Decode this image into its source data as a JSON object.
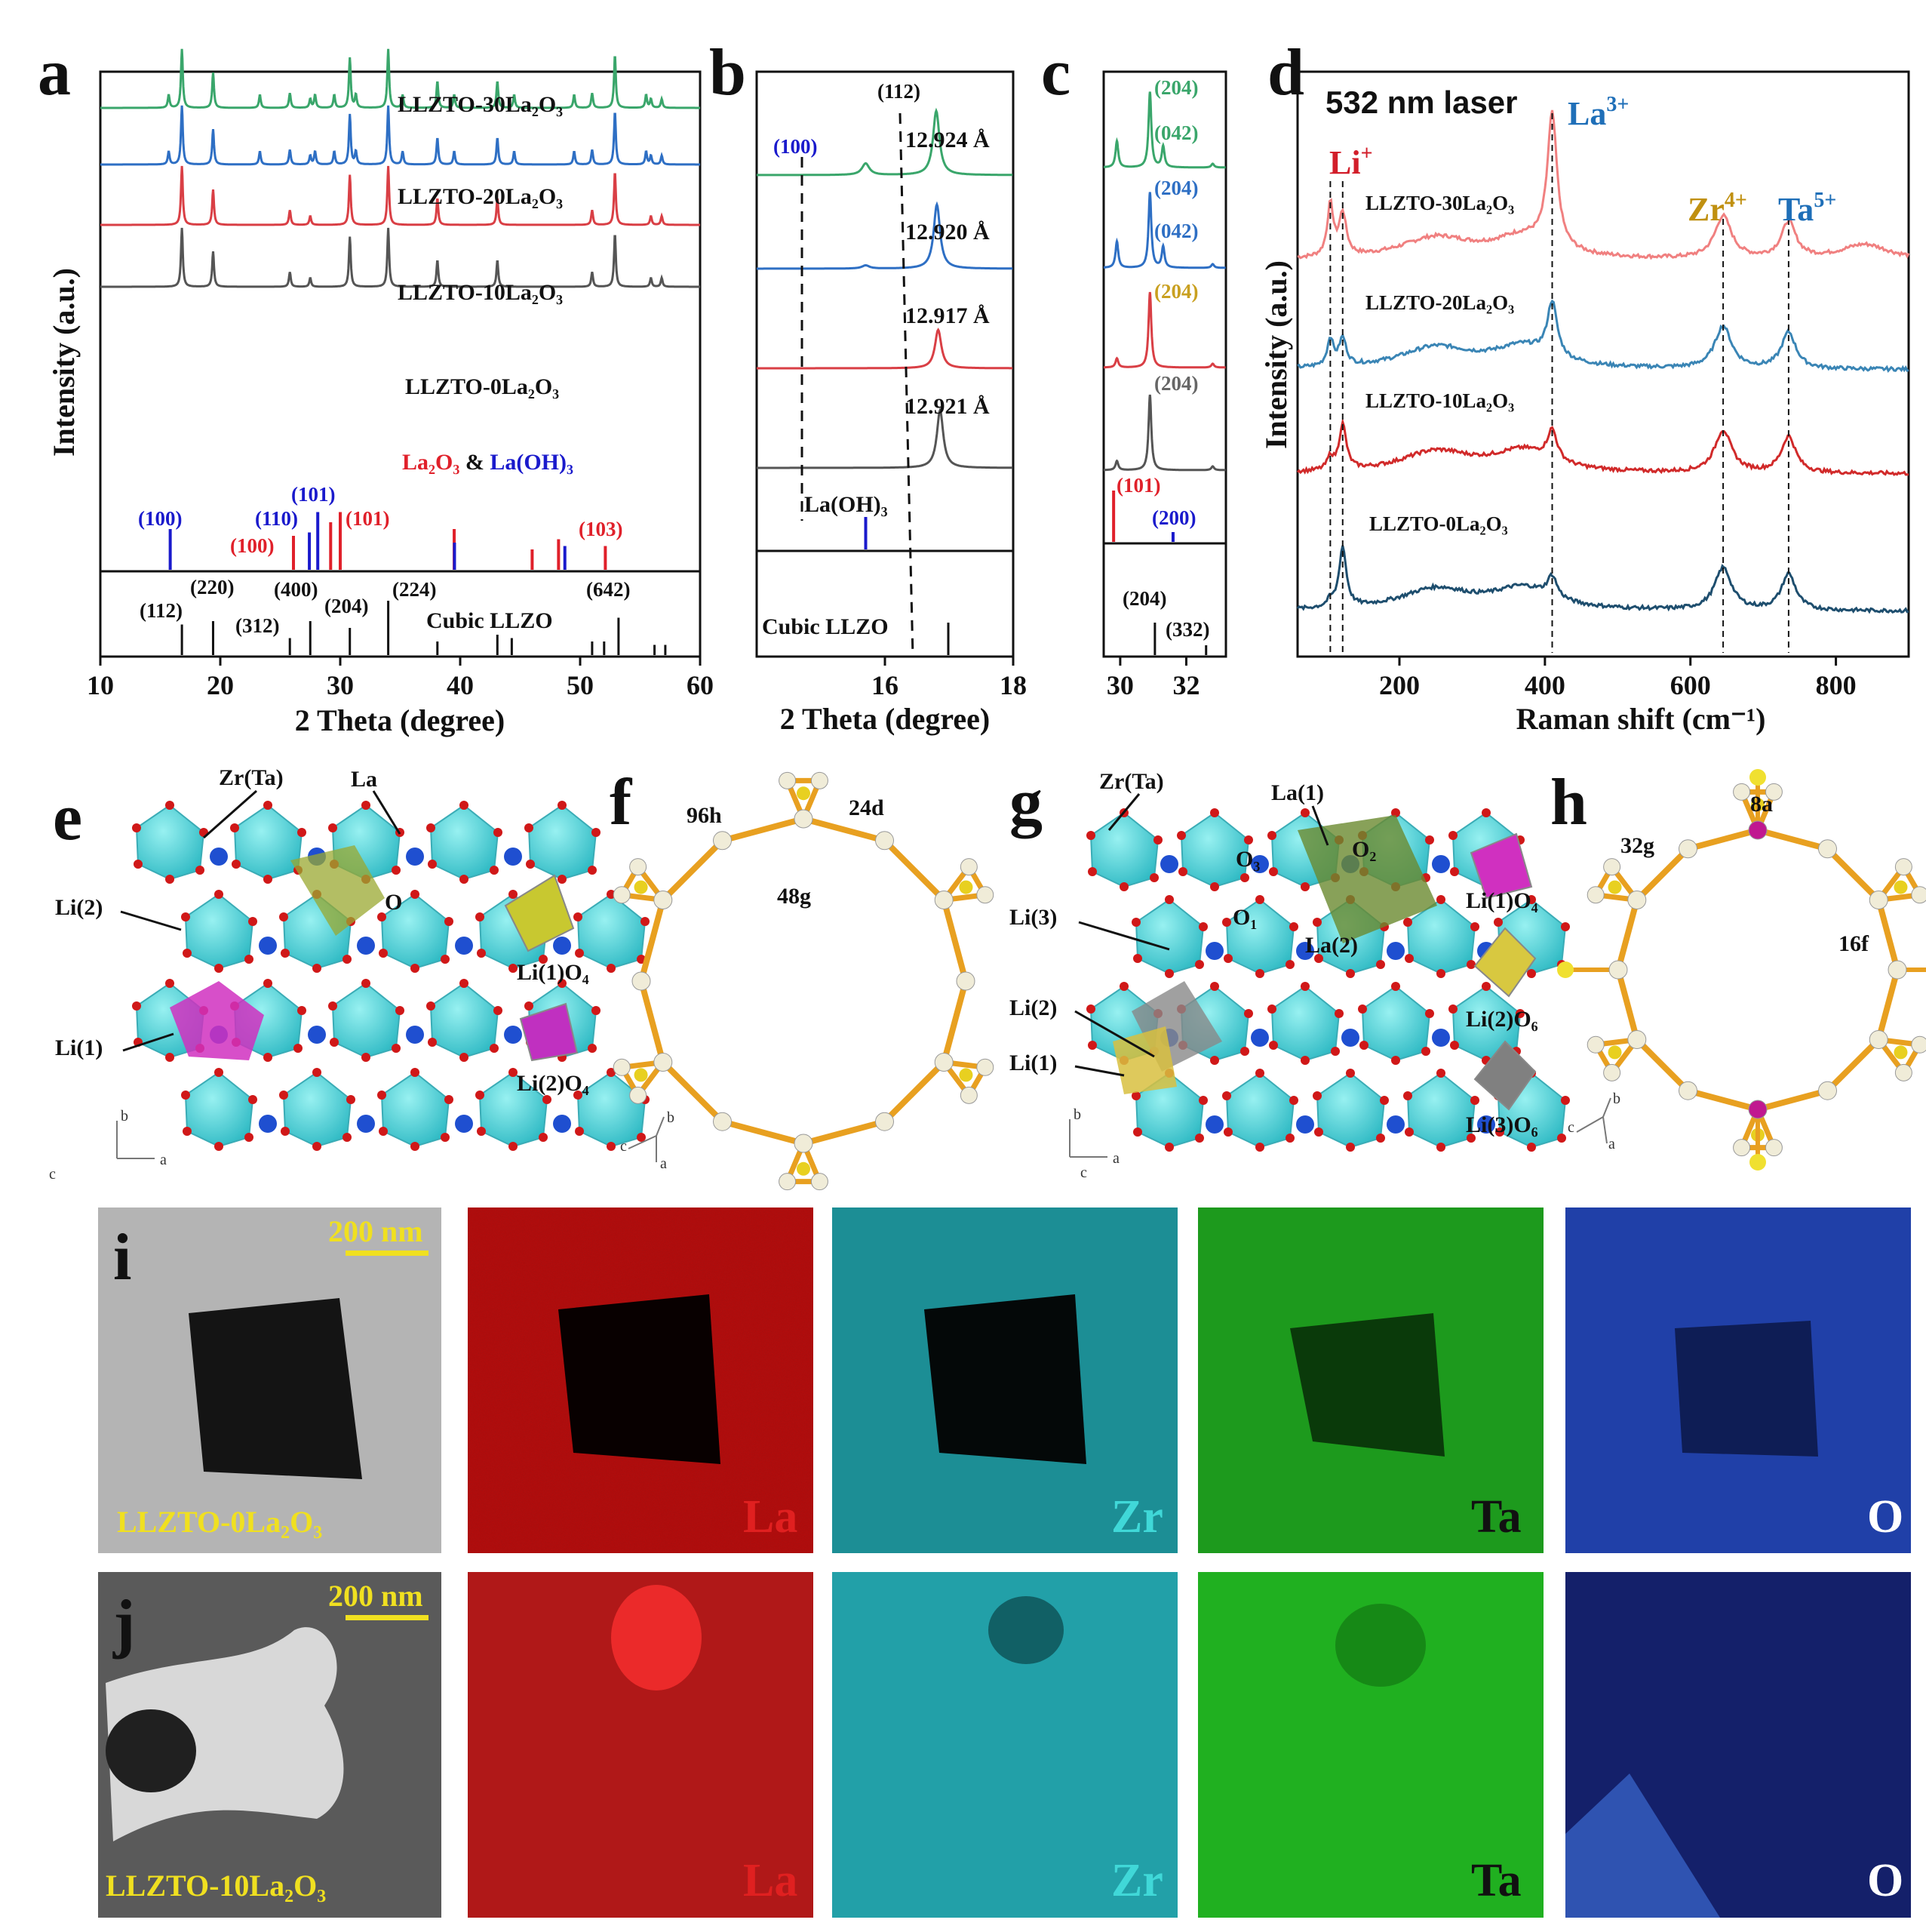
{
  "panels": {
    "a": "a",
    "b": "b",
    "c": "c",
    "d": "d",
    "e": "e",
    "f": "f",
    "g": "g",
    "h": "h",
    "i": "i",
    "j": "j"
  },
  "colors": {
    "s30": "#3aa66b",
    "s20": "#2e6fc4",
    "s10": "#d93f45",
    "s0": "#555555",
    "la2o3": "#e0202a",
    "laoh3": "#1a1acc",
    "ref": "#111111",
    "r30": "#f08080",
    "r20": "#3a85b5",
    "r10": "#d12a2a",
    "r0": "#1e4e6e"
  },
  "xrd_a": {
    "xlabel": "2 Theta (degree)",
    "ylabel": "Intensity (a.u.)",
    "xticks": [
      "10",
      "20",
      "30",
      "40",
      "50",
      "60"
    ],
    "series_labels": [
      "LLZTO-30La₂O₃",
      "LLZTO-20La₂O₃",
      "LLZTO-10La₂O₃",
      "LLZTO-0La₂O₃"
    ],
    "legend_la2o3": "La₂O₃",
    "legend_amp": " & ",
    "legend_laoh3": "La(OH)₃",
    "phase_labels": [
      {
        "t": "(100)",
        "c": "laoh3"
      },
      {
        "t": "(110)",
        "c": "laoh3"
      },
      {
        "t": "(101)",
        "c": "laoh3"
      },
      {
        "t": "(100)",
        "c": "la2o3"
      },
      {
        "t": "(101)",
        "c": "la2o3"
      },
      {
        "t": "(103)",
        "c": "la2o3"
      }
    ],
    "llzo_labels": [
      "(112)",
      "(220)",
      "(312)",
      "(400)",
      "(204)",
      "(224)",
      "(642)"
    ],
    "llzo_name": "Cubic LLZO"
  },
  "xrd_b": {
    "xticks": [
      "16",
      "18"
    ],
    "peaks": [
      "(112)",
      "(100)"
    ],
    "lattice": [
      "12.924 Å",
      "12.920 Å",
      "12.917 Å",
      "12.921 Å"
    ],
    "ref_laoh3": "La(OH)₃",
    "ref_llzo": "Cubic LLZO"
  },
  "xrd_c": {
    "xticks": [
      "30",
      "32"
    ],
    "labels": [
      "(204)",
      "(042)",
      "(204)",
      "(042)",
      "(204)",
      "(204)",
      "(101)",
      "(200)",
      "(204)",
      "(332)"
    ]
  },
  "xaxis_bc": "2 Theta (degree)",
  "raman": {
    "xlabel": "Raman shift (cm⁻¹)",
    "ylabel": "Intensity (a.u.)",
    "xticks": [
      "200",
      "400",
      "600",
      "800"
    ],
    "title": "532 nm laser",
    "ions": {
      "li": "Li",
      "li_sup": "+",
      "la": "La",
      "la_sup": "3+",
      "zr": "Zr",
      "zr_sup": "4+",
      "ta": "Ta",
      "ta_sup": "5+"
    },
    "series_labels": [
      "LLZTO-30La₂O₃",
      "LLZTO-20La₂O₃",
      "LLZTO-10La₂O₃",
      "LLZTO-0La₂O₃"
    ]
  },
  "chart_data": [
    {
      "type": "line",
      "panel": "a",
      "xlabel": "2 Theta (degree)",
      "ylabel": "Intensity (a.u.)",
      "xlim": [
        10,
        60
      ],
      "series": [
        {
          "name": "LLZTO-30La₂O₃"
        },
        {
          "name": "LLZTO-20La₂O₃"
        },
        {
          "name": "LLZTO-10La₂O₃"
        },
        {
          "name": "LLZTO-0La₂O₃"
        }
      ],
      "peaks_2theta": [
        16.8,
        19.4,
        25.8,
        27.5,
        30.8,
        34.0,
        38.1,
        43.1,
        51.0,
        52.9,
        55.9,
        56.8
      ],
      "ref_laoh3": [
        15.7,
        27.3,
        28.0,
        39.4,
        48.6
      ],
      "ref_la2o3": [
        26.1,
        29.2,
        30.0,
        39.5,
        46.0,
        48.2,
        52.1
      ],
      "ref_llzo": [
        16.8,
        19.4,
        25.8,
        27.5,
        30.8,
        34.0,
        38.1,
        43.1,
        44.3,
        51.0,
        52.0,
        53.2,
        56.2,
        57.1
      ]
    },
    {
      "type": "line",
      "panel": "b",
      "xlim": [
        14,
        18
      ],
      "peak_100": 15.7,
      "peak_112": 16.8,
      "lattice_A": [
        12.924,
        12.92,
        12.917,
        12.921
      ]
    },
    {
      "type": "line",
      "panel": "c",
      "xlim": [
        29.5,
        33.2
      ],
      "peak_204": 30.9
    },
    {
      "type": "line",
      "panel": "d",
      "xlabel": "Raman shift (cm⁻¹)",
      "ylabel": "Intensity (a.u.)",
      "xlim": [
        60,
        900
      ],
      "bands_cm": {
        "Li+": [
          105,
          122
        ],
        "La3+": [
          410
        ],
        "Zr4+": [
          645
        ],
        "Ta5+": [
          735
        ]
      },
      "series": [
        {
          "name": "LLZTO-30La₂O₃"
        },
        {
          "name": "LLZTO-20La₂O₃"
        },
        {
          "name": "LLZTO-10La₂O₃"
        },
        {
          "name": "LLZTO-0La₂O₃"
        }
      ]
    }
  ],
  "struct_e": {
    "labels": [
      "Zr(Ta)",
      "La",
      "Li(2)",
      "Li(1)",
      "O"
    ],
    "legend": [
      "Li(1)O₄",
      "Li(2)O₄"
    ],
    "axes": [
      "b",
      "a",
      "c"
    ]
  },
  "struct_f": {
    "labels": [
      "96h",
      "24d",
      "48g"
    ],
    "axes": [
      "b",
      "c",
      "a"
    ]
  },
  "struct_g": {
    "labels": [
      "Zr(Ta)",
      "La(1)",
      "O₃",
      "O₂",
      "O₁",
      "La(2)",
      "Li(3)",
      "Li(2)",
      "Li(1)"
    ],
    "legend": [
      "Li(1)O₄",
      "Li(2)O₆",
      "Li(3)O₆"
    ],
    "axes": [
      "b",
      "a",
      "c"
    ]
  },
  "struct_h": {
    "labels": [
      "32g",
      "8a",
      "16f"
    ],
    "axes": [
      "b",
      "c",
      "a"
    ]
  },
  "eds": {
    "scale": "200 nm",
    "row_i": "LLZTO-0La₂O₃",
    "row_j": "LLZTO-10La₂O₃",
    "elements": [
      {
        "t": "La",
        "c": "#e02020"
      },
      {
        "t": "Zr",
        "c": "#40d8d8"
      },
      {
        "t": "Ta",
        "c": "#111111"
      },
      {
        "t": "O",
        "c": "#ffffff"
      }
    ]
  }
}
